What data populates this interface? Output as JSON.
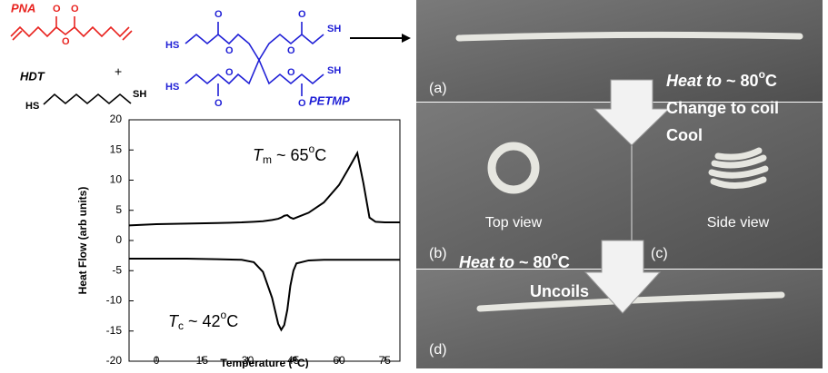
{
  "scheme": {
    "labels": {
      "pna": "PNA",
      "hdt": "HDT",
      "petmp": "PETMP",
      "plus": "+"
    },
    "atoms": [
      "O",
      "O",
      "O",
      "HS",
      "SH",
      "O",
      "O",
      "O",
      "O",
      "O",
      "O",
      "O",
      "O",
      "HS",
      "SH",
      "HS",
      "SH"
    ]
  },
  "chart_data": {
    "type": "line",
    "x_label": [
      "Temperature (",
      "o",
      "C)"
    ],
    "y_label": "Heat Flow (arb units)",
    "x": [
      -9,
      0,
      10,
      20,
      28,
      32,
      35,
      38,
      40,
      41,
      42,
      43,
      44,
      45,
      46,
      50,
      55,
      60,
      63,
      66,
      68,
      70,
      72,
      75,
      80
    ],
    "series": [
      {
        "color": "#000000",
        "values": [
          2.5,
          2.7,
          2.8,
          2.9,
          3.0,
          3.1,
          3.2,
          3.4,
          3.6,
          3.8,
          4.1,
          4.2,
          3.8,
          3.6,
          3.8,
          4.6,
          6.3,
          9.2,
          11.8,
          14.5,
          9.5,
          3.8,
          3.1,
          3.0,
          3.0
        ]
      },
      {
        "color": "#000000",
        "values": [
          -3.0,
          -3.0,
          -3.0,
          -3.1,
          -3.2,
          -3.6,
          -5.2,
          -9.5,
          -13.8,
          -14.8,
          -14.0,
          -11.5,
          -7.5,
          -5.0,
          -3.8,
          -3.3,
          -3.2,
          -3.2,
          -3.2,
          -3.2,
          -3.2,
          -3.2,
          -3.2,
          -3.2,
          -3.2
        ]
      }
    ],
    "xlim": [
      -9,
      80
    ],
    "xticks": [
      0,
      15,
      30,
      45,
      60,
      75
    ],
    "ylim": [
      -20,
      20
    ],
    "yticks": [
      -20,
      -15,
      -10,
      -5,
      0,
      5,
      10,
      15,
      20
    ],
    "annotations": [
      [
        "T",
        "m",
        " ~ 65",
        "o",
        "C"
      ],
      [
        "T",
        "c",
        " ~ 42",
        "o",
        "C"
      ]
    ]
  },
  "photos": {
    "panels": [
      "(a)",
      "(b)",
      "(c)",
      "(d)"
    ],
    "views": [
      "Top view",
      "Side view"
    ],
    "steps": [
      [
        "Heat to",
        " ~ 80",
        "o",
        "C"
      ],
      [
        "Change to coil"
      ],
      [
        "Cool"
      ],
      [
        "Heat to",
        " ~ 80",
        "o",
        "C"
      ],
      [
        "Uncoils"
      ]
    ]
  }
}
